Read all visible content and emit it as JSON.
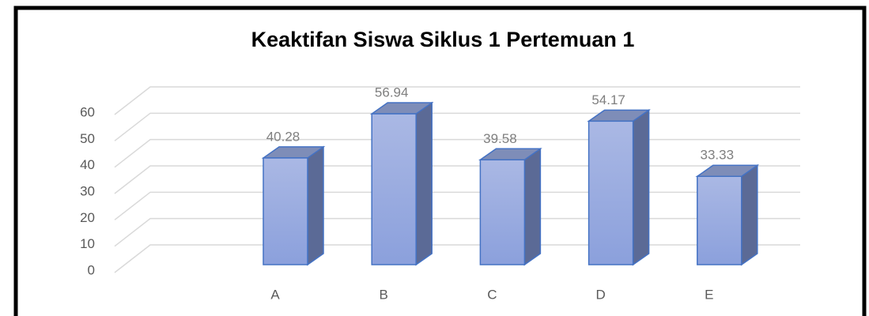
{
  "chart_data": {
    "type": "bar3d",
    "title": "Keaktifan Siswa Siklus 1 Pertemuan 1",
    "categories": [
      "A",
      "B",
      "C",
      "D",
      "E"
    ],
    "values": [
      40.28,
      56.94,
      39.58,
      54.17,
      33.33
    ],
    "color": "#4472c4",
    "ylim": [
      0,
      60
    ],
    "yticks": [
      0,
      10,
      20,
      30,
      40,
      50,
      60
    ],
    "grid": true
  }
}
